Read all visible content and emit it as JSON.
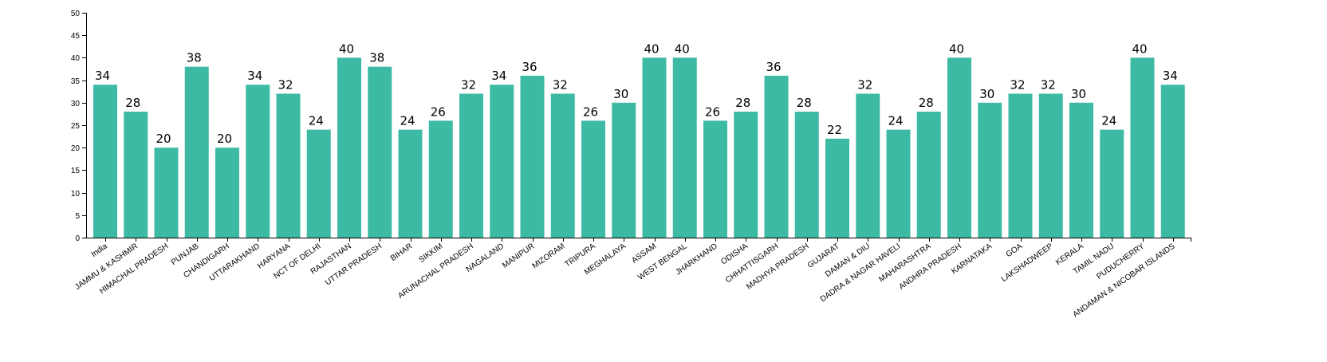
{
  "chart_data": {
    "type": "bar",
    "bar_color": "#3dbaa4",
    "ylim": [
      0,
      50
    ],
    "yticks": [
      0,
      5,
      10,
      15,
      20,
      25,
      30,
      35,
      40,
      45,
      50
    ],
    "categories": [
      "India",
      "JAMMU & KASHMIR",
      "HIMACHAL PRADESH",
      "PUNJAB",
      "CHANDIGARH",
      "UTTARAKHAND",
      "HARYANA",
      "NCT OF DELHI",
      "RAJASTHAN",
      "UTTAR PRADESH",
      "BIHAR",
      "SIKKIM",
      "ARUNACHAL PRADESH",
      "NAGALAND",
      "MANIPUR",
      "MIZORAM",
      "TRIPURA",
      "MEGHALAYA",
      "ASSAM",
      "WEST BENGAL",
      "JHARKHAND",
      "ODISHA",
      "CHHATTISGARH",
      "MADHYA PRADESH",
      "GUJARAT",
      "DAMAN & DIU",
      "DADRA & NAGAR HAVELI",
      "MAHARASHTRA",
      "ANDHRA PRADESH",
      "KARNATAKA",
      "GOA",
      "LAKSHADWEEP",
      "KERALA",
      "TAMIL NADU",
      "PUDUCHERRY",
      "ANDAMAN & NICOBAR ISLANDS"
    ],
    "values": [
      34,
      28,
      20,
      38,
      20,
      34,
      32,
      24,
      40,
      38,
      24,
      26,
      32,
      34,
      36,
      32,
      26,
      30,
      40,
      40,
      26,
      28,
      36,
      28,
      22,
      32,
      24,
      28,
      40,
      30,
      32,
      32,
      30,
      24,
      40,
      34
    ]
  }
}
